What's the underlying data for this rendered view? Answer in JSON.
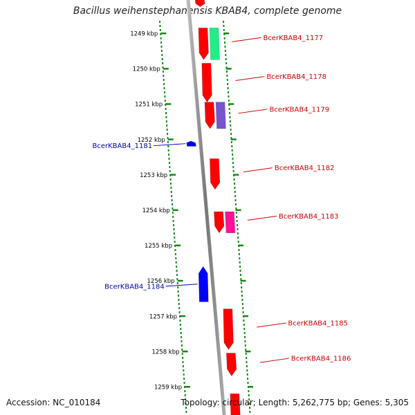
{
  "title": "Bacillus weihenstephanensis KBAB4, complete genome",
  "accession": "Accession: NC_010184",
  "topology": "Topology: circular; Length: 5,262,775 bp; Genes: 5,305",
  "scale_unit": "kbp",
  "ticks": [
    1249,
    1250,
    1251,
    1252,
    1253,
    1254,
    1255,
    1256,
    1257,
    1258,
    1259
  ],
  "colors": {
    "forward_gene": "#ff0000",
    "reverse_gene": "#0000ff",
    "forward_label": "#cc0000",
    "reverse_label": "#0000aa",
    "backbone": "#888888",
    "dots": "#118811",
    "tick_text": "#000000"
  },
  "genes": [
    {
      "label": "",
      "strand": "+",
      "start": 1248.0,
      "end": 1248.25,
      "color": "#ff0000"
    },
    {
      "label": "BcerKBAB4_1177",
      "strand": "+",
      "start": 1248.85,
      "end": 1249.75,
      "color": "#ff0000"
    },
    {
      "label": "",
      "strand": "+",
      "start": 1248.85,
      "end": 1249.75,
      "color": "#22ee88"
    },
    {
      "label": "BcerKBAB4_1178",
      "strand": "+",
      "start": 1249.85,
      "end": 1250.95,
      "color": "#ff0000"
    },
    {
      "label": "BcerKBAB4_1179",
      "strand": "+",
      "start": 1250.95,
      "end": 1251.7,
      "color": "#ff0000"
    },
    {
      "label": "",
      "strand": "+",
      "start": 1250.95,
      "end": 1251.7,
      "color": "#7755cc"
    },
    {
      "label": "BcerKBAB4_1181",
      "strand": "-",
      "start": 1252.05,
      "end": 1252.2,
      "color": "#0000ff"
    },
    {
      "label": "BcerKBAB4_1182",
      "strand": "+",
      "start": 1252.55,
      "end": 1253.42,
      "color": "#ff0000"
    },
    {
      "label": "BcerKBAB4_1183",
      "strand": "+",
      "start": 1254.05,
      "end": 1254.65,
      "color": "#ff0000"
    },
    {
      "label": "",
      "strand": "+",
      "start": 1254.05,
      "end": 1254.65,
      "color": "#ff1199"
    },
    {
      "label": "BcerKBAB4_1184",
      "strand": "-",
      "start": 1255.6,
      "end": 1256.6,
      "color": "#0000ff"
    },
    {
      "label": "BcerKBAB4_1185",
      "strand": "+",
      "start": 1256.8,
      "end": 1257.95,
      "color": "#ff0000"
    },
    {
      "label": "BcerKBAB4_1186",
      "strand": "+",
      "start": 1258.05,
      "end": 1258.7,
      "color": "#ff0000"
    },
    {
      "label": "",
      "strand": "+",
      "start": 1259.2,
      "end": 1260.0,
      "color": "#ff0000"
    }
  ]
}
